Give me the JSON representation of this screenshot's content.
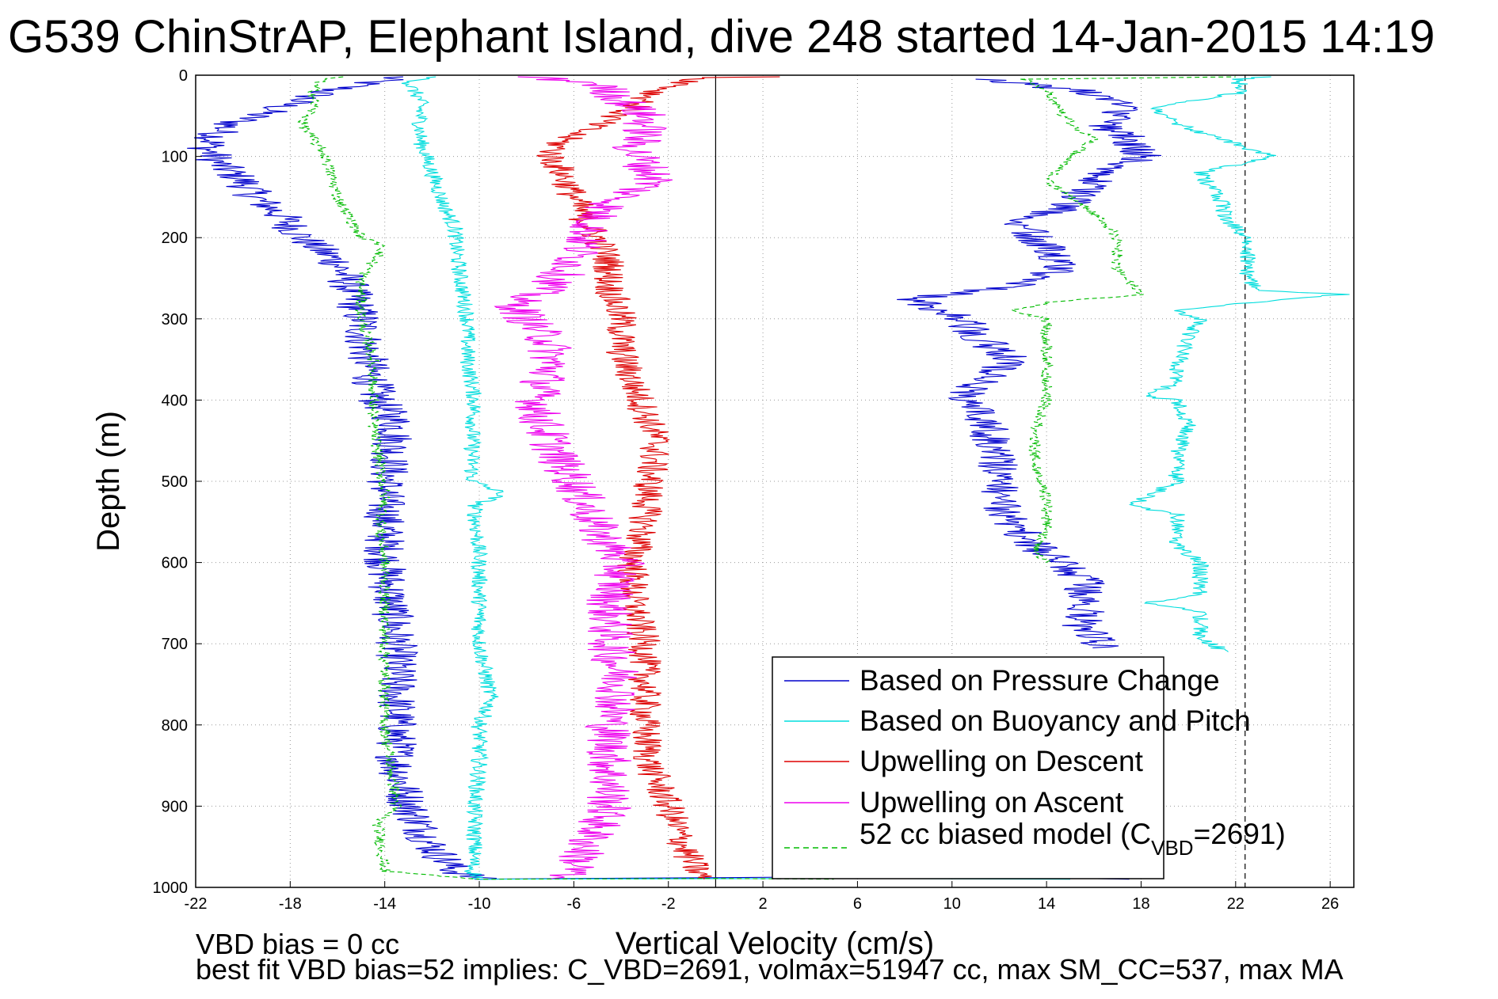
{
  "chart_data": {
    "type": "line",
    "title": "G539 ChinStrAP, Elephant Island, dive 248 started 14-Jan-2015 14:19",
    "xlabel": "Vertical Velocity (cm/s)",
    "ylabel": "Depth (m)",
    "xlim": [
      -22,
      27
    ],
    "ylim": [
      0,
      1000
    ],
    "y_reversed": true,
    "xticks": [
      -22,
      -18,
      -14,
      -10,
      -6,
      -2,
      2,
      6,
      10,
      14,
      18,
      22,
      26
    ],
    "yticks": [
      0,
      100,
      200,
      300,
      400,
      500,
      600,
      700,
      800,
      900,
      1000
    ],
    "grid": true,
    "legend_position": "bottom-right",
    "reference_lines": [
      {
        "x": 0,
        "style": "solid",
        "color": "#000000"
      },
      {
        "x": 22.4,
        "style": "dashed",
        "color": "#000000"
      }
    ],
    "series": [
      {
        "name": "Based on Pressure Change",
        "color": "#0000cc",
        "style": "solid",
        "noise": 0.9,
        "segments": [
          {
            "depth": [
              2,
              20,
              40,
              60,
              70,
              90,
              110,
              130,
              150,
              170,
              200,
              230,
              260,
              300,
              340,
              380,
              400,
              430,
              480,
              520,
              600,
              700,
              800,
              850,
              900,
              950,
              980,
              990
            ],
            "v": [
              -13.5,
              -16.5,
              -18.5,
              -20.5,
              -21,
              -21.5,
              -21,
              -20,
              -19.5,
              -18.5,
              -17.5,
              -16,
              -15.5,
              -15,
              -14.8,
              -14.5,
              -14.3,
              -13.5,
              -13.8,
              -14,
              -14,
              -13.5,
              -13.5,
              -13.5,
              -13,
              -12,
              -11,
              -10
            ]
          },
          {
            "depth": [
              990,
              988,
              986,
              990
            ],
            "v": [
              -10,
              0,
              10,
              17.5
            ]
          },
          {
            "depth": [
              705,
              680,
              650,
              620,
              600,
              580,
              550,
              520,
              480,
              430,
              400,
              380,
              350,
              320,
              300,
              285,
              275,
              260,
              240,
              220,
              200,
              180,
              160,
              140,
              120,
              100,
              80,
              60,
              40,
              20,
              10,
              5
            ],
            "v": [
              16.5,
              15.5,
              15.8,
              15.5,
              14.5,
              13.5,
              12.5,
              12,
              12,
              11.5,
              10.5,
              11,
              12.5,
              11,
              10.5,
              9,
              8.5,
              12.5,
              14.5,
              14.5,
              13.5,
              13,
              15,
              15.5,
              16.5,
              18,
              17.5,
              16.5,
              17.5,
              15.5,
              13,
              11
            ]
          }
        ]
      },
      {
        "name": "Based on Buoyancy and Pitch",
        "color": "#00dddd",
        "style": "solid",
        "noise": 0.35,
        "segments": [
          {
            "depth": [
              2,
              10,
              30,
              50,
              80,
              120,
              160,
              190,
              210,
              250,
              300,
              350,
              400,
              450,
              500,
              515,
              530,
              600,
              700,
              770,
              800,
              850,
              900,
              950,
              980,
              990
            ],
            "v": [
              -12,
              -13,
              -12.5,
              -12.5,
              -12.5,
              -12,
              -11.5,
              -11,
              -11,
              -10.8,
              -10.5,
              -10.5,
              -10.2,
              -10.3,
              -10.3,
              -9,
              -10.2,
              -10,
              -10,
              -9.5,
              -10,
              -10,
              -10.2,
              -10.2,
              -10.3,
              -10
            ]
          },
          {
            "depth": [
              990,
              989,
              990
            ],
            "v": [
              -10,
              5,
              15
            ]
          },
          {
            "depth": [
              710,
              690,
              660,
              650,
              640,
              600,
              580,
              540,
              530,
              500,
              470,
              430,
              400,
              395,
              380,
              360,
              320,
              300,
              290,
              280,
              270,
              265,
              250,
              230,
              200,
              175,
              160,
              140,
              120,
              100,
              80,
              60,
              40,
              20,
              5,
              2
            ],
            "v": [
              21.5,
              20.5,
              20.5,
              18,
              20.5,
              20.5,
              19.5,
              19.5,
              17.5,
              19.5,
              19.5,
              20,
              19.5,
              18,
              19.5,
              19.5,
              20,
              20.5,
              19.5,
              22.5,
              26.5,
              23,
              22.5,
              22.5,
              22.5,
              21.5,
              21.5,
              21,
              20.5,
              23.5,
              21.5,
              19.5,
              18.5,
              22.5,
              22,
              23.5
            ]
          }
        ]
      },
      {
        "name": "Upwelling on Descent",
        "color": "#dd0000",
        "style": "solid",
        "noise": 0.7,
        "segments": [
          {
            "depth": [
              2,
              3,
              20,
              40,
              60,
              80,
              100,
              120,
              150,
              180,
              200,
              230,
              260,
              300,
              340,
              380,
              400,
              450,
              500,
              550,
              600,
              650,
              700,
              750,
              800,
              850,
              900,
              940,
              960,
              980,
              990
            ],
            "v": [
              2.8,
              -0.5,
              -2.5,
              -3.5,
              -5,
              -6.5,
              -7,
              -6.5,
              -6,
              -5.5,
              -5,
              -4.5,
              -4.5,
              -4,
              -4,
              -3.5,
              -3.2,
              -2.5,
              -2.8,
              -3,
              -3.5,
              -3.5,
              -3,
              -3,
              -3,
              -2.8,
              -2,
              -1.5,
              -1.2,
              -0.8,
              -0.5
            ]
          }
        ]
      },
      {
        "name": "Upwelling on Ascent",
        "color": "#ee00ee",
        "style": "solid",
        "noise": 1.0,
        "segments": [
          {
            "depth": [
              2,
              10,
              30,
              50,
              70,
              90,
              110,
              130,
              150,
              170,
              200,
              230,
              260,
              280,
              300,
              330,
              360,
              390,
              420,
              450,
              480,
              500,
              530,
              560,
              600,
              650,
              700,
              750,
              800,
              850,
              900,
              950,
              980,
              990
            ],
            "v": [
              -8,
              -5,
              -4,
              -3,
              -3,
              -3.5,
              -3,
              -2.5,
              -4,
              -5,
              -5.5,
              -6,
              -7,
              -8.5,
              -8,
              -7,
              -7,
              -7.5,
              -7.5,
              -7,
              -6.5,
              -6,
              -5.5,
              -5,
              -4,
              -4.5,
              -4.5,
              -4,
              -4.5,
              -4.5,
              -4.5,
              -5.5,
              -6,
              -7
            ]
          }
        ]
      },
      {
        "name": "52 cc biased model (C_VBD=2691)",
        "label_main": "52 cc biased model (C",
        "label_sub": "VBD",
        "label_tail": "=2691)",
        "color": "#00bb00",
        "style": "dashed",
        "noise": 0.25,
        "segments": [
          {
            "depth": [
              2,
              10,
              40,
              60,
              100,
              150,
              200,
              210,
              250,
              300,
              350,
              400,
              430,
              480,
              520,
              560,
              600,
              700,
              740,
              800,
              900,
              920,
              980,
              990
            ],
            "v": [
              -16,
              -17,
              -17,
              -17.5,
              -16.5,
              -16,
              -15,
              -14,
              -15,
              -15,
              -14.5,
              -14.5,
              -14.5,
              -14.2,
              -14,
              -14.2,
              -14,
              -14,
              -14,
              -14,
              -13.5,
              -14.3,
              -14,
              -10
            ]
          },
          {
            "depth": [
              990,
              989,
              990
            ],
            "v": [
              -10,
              0,
              5
            ]
          },
          {
            "depth": [
              600,
              580,
              560,
              520,
              480,
              440,
              400,
              380,
              350,
              320,
              300,
              290,
              280,
              270,
              240,
              210,
              200,
              180,
              160,
              130,
              100,
              80,
              60,
              40,
              20,
              5,
              2
            ],
            "v": [
              14,
              13.5,
              14,
              14,
              13.5,
              13.5,
              14,
              14,
              14,
              14,
              14,
              12.5,
              14,
              18,
              17,
              17,
              17,
              16.5,
              15.5,
              14,
              15,
              16,
              15,
              14.5,
              14,
              13,
              22
            ]
          }
        ]
      }
    ],
    "annotations": [
      "VBD bias = 0 cc",
      "best fit VBD bias=52 implies: C_VBD=2691, volmax=51947 cc, max SM_CC=537, max MA"
    ]
  },
  "title": "G539 ChinStrAP, Elephant Island, dive 248 started 14-Jan-2015 14:19",
  "xlabel": "Vertical Velocity (cm/s)",
  "ylabel": "Depth (m)",
  "legend": {
    "items": [
      {
        "label": "Based on Pressure Change",
        "color": "#0000cc",
        "dashed": false
      },
      {
        "label": "Based on Buoyancy and Pitch",
        "color": "#00dddd",
        "dashed": false
      },
      {
        "label": "Upwelling on Descent",
        "color": "#dd0000",
        "dashed": false
      },
      {
        "label": "Upwelling on Ascent",
        "color": "#ee00ee",
        "dashed": false
      }
    ],
    "model": {
      "main": "52 cc biased model (C",
      "sub": "VBD",
      "tail": "=2691)",
      "color": "#00bb00"
    }
  },
  "notes": {
    "line1": "VBD bias = 0 cc",
    "line2": "best fit VBD bias=52 implies: C_VBD=2691, volmax=51947 cc, max SM_CC=537, max MA"
  }
}
